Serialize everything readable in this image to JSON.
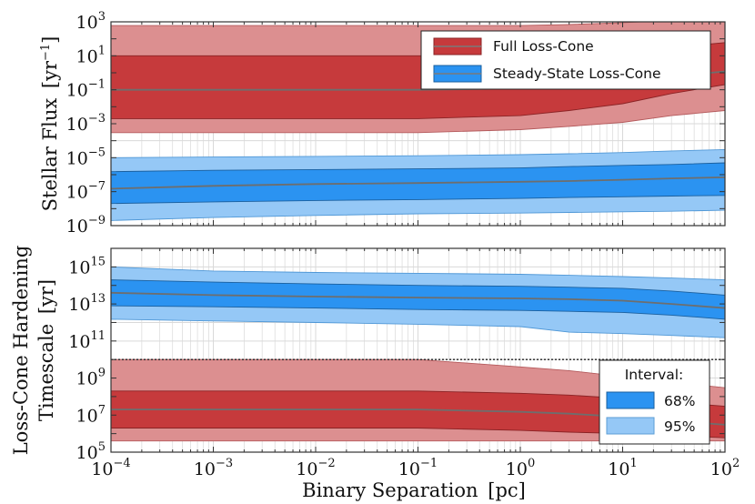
{
  "chart_data": [
    {
      "type": "area",
      "panel": "top",
      "ylabel": "Stellar Flux [yr⁻¹]",
      "xscale": "log",
      "yscale": "log",
      "xlim": [
        0.0001,
        100
      ],
      "ylim": [
        1e-09,
        1000
      ],
      "grid": true,
      "legend_position": "top-right",
      "legend_entries": [
        "Full Loss-Cone",
        "Steady-State Loss-Cone"
      ],
      "x": [
        0.0001,
        0.001,
        0.01,
        0.1,
        1,
        3,
        10,
        30,
        100
      ],
      "series": [
        {
          "name": "Full Loss-Cone",
          "color": "#c0393b",
          "median": [
            0.1,
            0.1,
            0.1,
            0.1,
            0.12,
            0.17,
            0.3,
            0.6,
            1.2
          ],
          "band68": [
            [
              0.002,
              0.002,
              0.002,
              0.002,
              0.003,
              0.006,
              0.015,
              0.06,
              0.2
            ],
            [
              10,
              10,
              10,
              10,
              10,
              12,
              18,
              30,
              60
            ]
          ],
          "band95": [
            [
              0.0003,
              0.0003,
              0.0003,
              0.0003,
              0.00045,
              0.0007,
              0.0012,
              0.003,
              0.006
            ],
            [
              600,
              600,
              600,
              600,
              600,
              700,
              900,
              1200,
              1500
            ]
          ]
        },
        {
          "name": "Steady-State Loss-Cone",
          "color": "#1f8ff2",
          "median": [
            1.5e-07,
            2.2e-07,
            2.8e-07,
            3.2e-07,
            3.8e-07,
            4.2e-07,
            5e-07,
            6e-07,
            7e-07
          ],
          "band68": [
            [
              2e-08,
              2.5e-08,
              3e-08,
              3.4e-08,
              4e-08,
              4.5e-08,
              5e-08,
              5.5e-08,
              6e-08
            ],
            [
              1.5e-06,
              1.8e-06,
              2e-06,
              2.2e-06,
              2.5e-06,
              3e-06,
              3.5e-06,
              4e-06,
              5e-06
            ]
          ],
          "band95": [
            [
              2e-09,
              3e-09,
              4e-09,
              5e-09,
              5.5e-09,
              6e-09,
              6.5e-09,
              7e-09,
              8e-09
            ],
            [
              1e-05,
              1.1e-05,
              1.2e-05,
              1.3e-05,
              1.5e-05,
              1.7e-05,
              2e-05,
              2.5e-05,
              3e-05
            ]
          ]
        }
      ]
    },
    {
      "type": "area",
      "panel": "bottom",
      "xlabel": "Binary Separation [pc]",
      "ylabel": "Loss-Cone Hardening Timescale [yr]",
      "xscale": "log",
      "yscale": "log",
      "xlim": [
        0.0001,
        100
      ],
      "ylim": [
        100000,
        1e+16
      ],
      "grid": true,
      "legend_position": "bottom-right",
      "legend_title": "Interval:",
      "legend_entries": [
        "68%",
        "95%"
      ],
      "hline": 10000000000,
      "x": [
        0.0001,
        0.001,
        0.01,
        0.1,
        1,
        3,
        10,
        30,
        100
      ],
      "series": [
        {
          "name": "Steady-State Loss-Cone",
          "color": "#1f8ff2",
          "median": [
            40000000000000.0,
            30000000000000.0,
            25000000000000.0,
            22000000000000.0,
            20000000000000.0,
            18000000000000.0,
            15000000000000.0,
            10000000000000.0,
            6000000000000.0
          ],
          "band68": [
            [
              8000000000000.0,
              7000000000000.0,
              6000000000000.0,
              5000000000000.0,
              4500000000000.0,
              4000000000000.0,
              3500000000000.0,
              2500000000000.0,
              1500000000000.0
            ],
            [
              200000000000000.0,
              150000000000000.0,
              120000000000000.0,
              100000000000000.0,
              90000000000000.0,
              80000000000000.0,
              70000000000000.0,
              50000000000000.0,
              30000000000000.0
            ]
          ],
          "band95": [
            [
              1500000000000.0,
              1200000000000.0,
              1000000000000.0,
              800000000000.0,
              600000000000.0,
              300000000000.0,
              250000000000.0,
              200000000000.0,
              150000000000.0
            ],
            [
              1000000000000000.0,
              600000000000000.0,
              500000000000000.0,
              450000000000000.0,
              400000000000000.0,
              350000000000000.0,
              300000000000000.0,
              250000000000000.0,
              200000000000000.0
            ]
          ]
        },
        {
          "name": "Full Loss-Cone",
          "color": "#c0393b",
          "median": [
            20000000.0,
            20000000.0,
            20000000.0,
            20000000.0,
            15000000.0,
            12000000.0,
            8000000.0,
            5000000.0,
            3000000.0
          ],
          "band68": [
            [
              2000000.0,
              2000000.0,
              2000000.0,
              2000000.0,
              1500000.0,
              1200000.0,
              1000000.0,
              800000.0,
              600000.0
            ],
            [
              200000000.0,
              200000000.0,
              200000000.0,
              200000000.0,
              150000000.0,
              120000000.0,
              80000000.0,
              50000000.0,
              30000000.0
            ]
          ],
          "band95": [
            [
              400000.0,
              400000.0,
              400000.0,
              400000.0,
              400000.0,
              400000.0,
              400000.0,
              400000.0,
              400000.0
            ],
            [
              10000000000.0,
              10000000000.0,
              10000000000.0,
              10000000000.0,
              4000000000.0,
              2500000000.0,
              1200000000.0,
              600000000.0,
              300000000.0
            ]
          ]
        }
      ]
    }
  ],
  "xticks": [
    {
      "base": "10",
      "exp": "-4"
    },
    {
      "base": "10",
      "exp": "-3"
    },
    {
      "base": "10",
      "exp": "-2"
    },
    {
      "base": "10",
      "exp": "-1"
    },
    {
      "base": "10",
      "exp": "0"
    },
    {
      "base": "10",
      "exp": "1"
    },
    {
      "base": "10",
      "exp": "2"
    }
  ],
  "top_yticks": [
    {
      "base": "10",
      "exp": "-9"
    },
    {
      "base": "10",
      "exp": "-7"
    },
    {
      "base": "10",
      "exp": "-5"
    },
    {
      "base": "10",
      "exp": "-3"
    },
    {
      "base": "10",
      "exp": "-1"
    },
    {
      "base": "10",
      "exp": "1"
    },
    {
      "base": "10",
      "exp": "3"
    }
  ],
  "bottom_yticks": [
    {
      "base": "10",
      "exp": "5"
    },
    {
      "base": "10",
      "exp": "7"
    },
    {
      "base": "10",
      "exp": "9"
    },
    {
      "base": "10",
      "exp": "11"
    },
    {
      "base": "10",
      "exp": "13"
    },
    {
      "base": "10",
      "exp": "15"
    }
  ],
  "labels": {
    "top_ylabel_main": "Stellar Flux",
    "top_ylabel_unit_open": "[yr",
    "top_ylabel_unit_exp": "−1",
    "top_ylabel_unit_close": "]",
    "bottom_ylabel_line1": "Loss-Cone Hardening",
    "bottom_ylabel_line2": "Timescale",
    "bottom_ylabel_unit": "[yr]",
    "xlabel_main": "Binary Separation",
    "xlabel_unit": "[pc]"
  },
  "legend_top": {
    "full": "Full Loss-Cone",
    "steady": "Steady-State Loss-Cone"
  },
  "legend_bottom": {
    "title": "Interval:",
    "i68": "68%",
    "i95": "95%"
  },
  "colors": {
    "red_68": "#c63a3c",
    "red_95": "#dc8f90",
    "blue_68": "#2b93f1",
    "blue_95": "#95c8f6",
    "median": "#6e6e6e",
    "grid": "#d9d9d9",
    "axis": "#333333"
  }
}
